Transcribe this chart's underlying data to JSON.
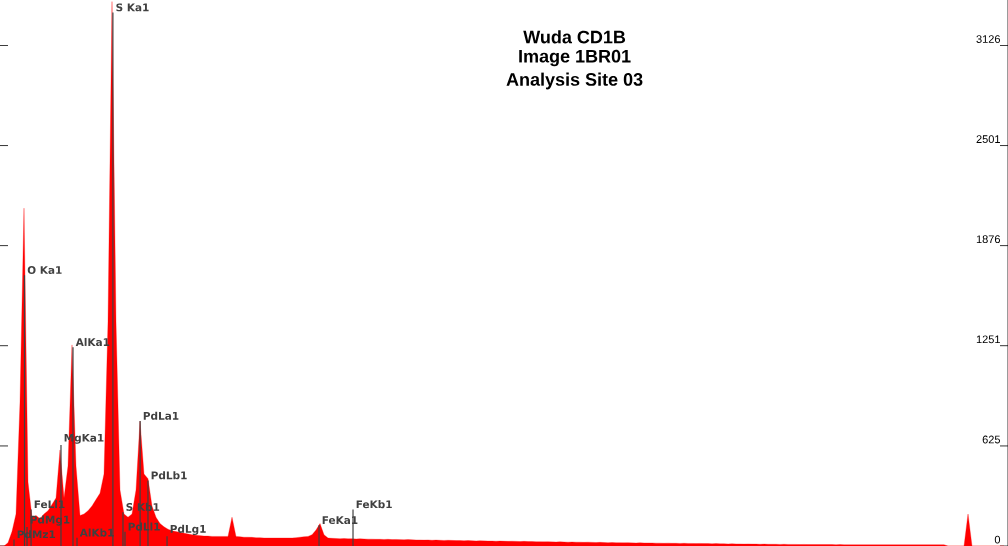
{
  "chart_data": {
    "type": "area",
    "title": "Wuda CD1B",
    "subtitle": "Image 1BR01",
    "annotations": [
      "Analysis Site 03",
      "S Ka1",
      "O Ka1",
      "AlKa1",
      "MgKa1",
      "PdLa1",
      "PdLb1",
      "S Kb1",
      "FeLl1",
      "PdMg1",
      "PdMz1",
      "AlKb1",
      "PdLl1",
      "PdLg1",
      "FeKa1",
      "FeKb1"
    ],
    "categories": [
      null,
      null,
      null,
      null,
      null,
      null,
      null,
      null,
      null,
      null,
      null,
      null,
      null,
      null,
      null,
      null,
      null,
      null,
      null,
      null,
      null,
      null,
      null,
      null,
      null,
      null,
      null,
      null,
      null,
      null,
      null,
      null,
      null,
      null,
      null,
      null,
      null,
      null,
      null,
      null,
      null,
      null,
      null,
      null,
      null,
      null,
      null,
      null,
      null,
      null,
      null,
      null,
      null,
      null,
      null,
      null,
      null,
      null,
      null,
      null,
      null,
      null,
      null,
      null,
      null,
      null,
      null,
      null,
      null,
      null,
      null,
      null,
      null,
      null,
      null,
      null,
      null,
      null,
      null,
      null,
      null,
      null,
      null,
      null,
      null,
      null,
      null,
      null,
      null,
      null,
      null,
      null,
      null,
      null,
      null,
      null,
      null,
      null,
      null,
      null,
      null,
      null,
      null,
      null,
      null,
      null,
      null,
      null,
      null,
      null,
      null,
      null,
      null,
      null,
      null,
      null,
      null,
      null,
      null,
      null,
      null,
      null,
      null,
      null,
      null,
      null,
      null,
      null,
      null,
      null,
      null,
      null,
      null,
      null,
      null,
      null,
      null,
      null,
      null,
      null,
      null,
      null,
      null,
      null,
      null,
      null,
      null,
      null,
      null,
      null,
      null,
      null,
      null,
      null,
      null,
      null,
      null,
      null,
      null,
      null,
      null,
      null,
      null,
      null,
      null,
      null,
      null,
      null,
      null,
      null,
      null,
      null,
      null,
      null,
      null,
      null,
      null,
      null,
      null,
      null,
      null,
      null,
      null,
      null,
      null,
      null,
      null,
      null,
      null,
      null,
      null,
      null,
      null,
      null,
      null,
      null,
      null,
      null,
      null,
      null,
      null,
      null,
      null,
      null,
      null,
      null,
      null,
      null,
      null,
      null,
      null,
      null,
      null,
      null,
      null,
      null,
      null,
      null,
      null,
      null,
      null,
      null,
      null,
      null,
      null,
      null,
      null,
      null,
      null,
      null,
      null,
      null,
      null,
      null,
      null,
      null,
      null,
      null,
      null,
      null,
      null,
      null,
      null,
      null,
      null,
      null,
      null,
      null,
      null,
      null,
      null,
      null
    ],
    "series": [
      {
        "color": "#ff0000",
        "values": [
          0,
          0,
          20,
          90,
          200,
          900,
          2110,
          400,
          180,
          190,
          170,
          200,
          220,
          260,
          300,
          600,
          300,
          500,
          1256,
          500,
          190,
          200,
          220,
          250,
          290,
          330,
          450,
          1400,
          3400,
          1400,
          350,
          200,
          180,
          200,
          350,
          780,
          450,
          420,
          250,
          180,
          140,
          120,
          105,
          95,
          90,
          85,
          80,
          75,
          70,
          68,
          65,
          62,
          62,
          60,
          60,
          60,
          60,
          60,
          180,
          60,
          58,
          55,
          55,
          54,
          52,
          52,
          50,
          50,
          50,
          50,
          50,
          50,
          50,
          50,
          52,
          55,
          58,
          60,
          70,
          100,
          140,
          70,
          50,
          48,
          47,
          46,
          47,
          45,
          46,
          44,
          45,
          44,
          43,
          43,
          42,
          42,
          41,
          42,
          40,
          41,
          40,
          39,
          40,
          39,
          38,
          38,
          37,
          38,
          36,
          37,
          36,
          35,
          36,
          35,
          34,
          34,
          33,
          34,
          33,
          32,
          33,
          32,
          31,
          31,
          30,
          31,
          30,
          29,
          30,
          29,
          28,
          29,
          28,
          28,
          27,
          27,
          26,
          27,
          26,
          25,
          26,
          25,
          24,
          25,
          24,
          24,
          23,
          24,
          23,
          22,
          23,
          22,
          21,
          22,
          21,
          21,
          20,
          21,
          20,
          19,
          20,
          19,
          19,
          19,
          18,
          18,
          17,
          18,
          17,
          17,
          16,
          17,
          16,
          16,
          15,
          16,
          15,
          15,
          14,
          15,
          14,
          14,
          13,
          14,
          13,
          13,
          12,
          13,
          12,
          12,
          11,
          12,
          11,
          11,
          11,
          10,
          11,
          10,
          10,
          10,
          9,
          10,
          9,
          9,
          9,
          9,
          9,
          9,
          9,
          8,
          9,
          8,
          8,
          8,
          8,
          8,
          8,
          8,
          8,
          8,
          8,
          8,
          8,
          8,
          8,
          8,
          8,
          8,
          8,
          8,
          8,
          8,
          8,
          8,
          8,
          8,
          8,
          0,
          0,
          0,
          0,
          0,
          200,
          0,
          0,
          0,
          0,
          0,
          0,
          0,
          0,
          0
        ]
      }
    ],
    "ylim": [
      0,
      3410
    ],
    "yticks": [
      0,
      625,
      1251,
      1876,
      2501,
      3126
    ],
    "tick_labels": "y"
  }
}
